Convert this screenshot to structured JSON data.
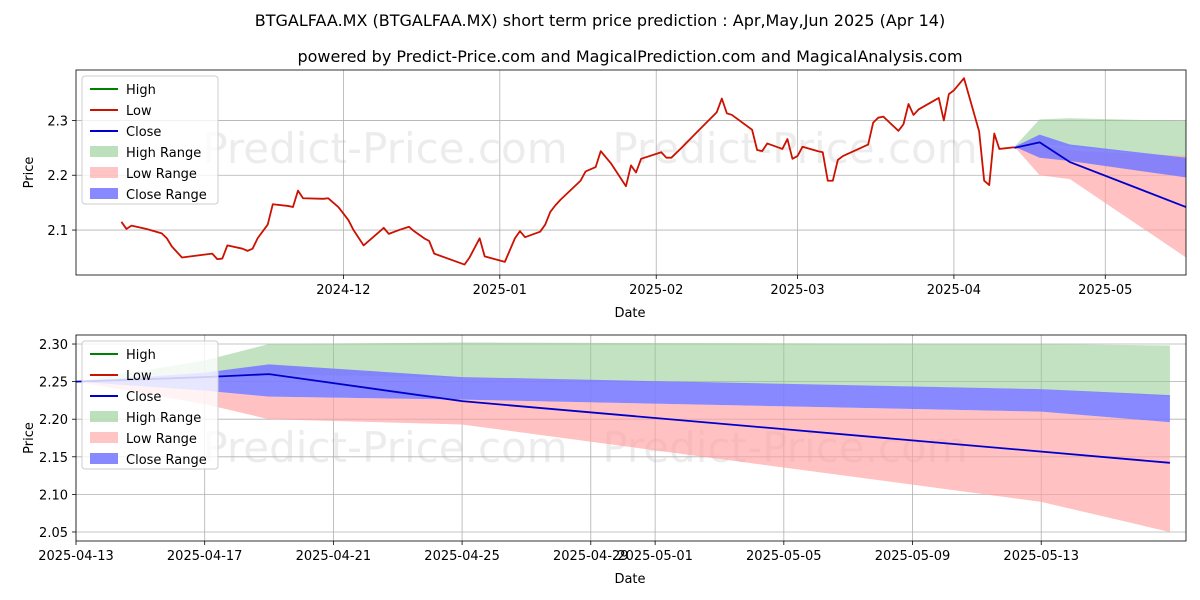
{
  "title": "BTGALFAA.MX (BTGALFAA.MX) short term price prediction : Apr,May,Jun 2025 (Apr 14)",
  "subtitle": "powered by Predict-Price.com and MagicalPrediction.com and MagicalAnalysis.com",
  "watermark": "Predict-Price.com",
  "colors": {
    "high": "#008000",
    "low": "#cc1100",
    "close": "#0000cc",
    "high_range": "#8fca8f",
    "low_range": "#ff9f9f",
    "close_range": "#7b7bff"
  },
  "legend": {
    "high": "High",
    "low": "Low",
    "close": "Close",
    "high_range": "High Range",
    "low_range": "Low Range",
    "close_range": "Close Range"
  },
  "chart_data": [
    {
      "type": "line",
      "xlabel": "Date",
      "ylabel": "Price",
      "xlim_day": [
        -23,
        197
      ],
      "ylim": [
        2.018,
        2.392
      ],
      "yticks": [
        2.1,
        2.2,
        2.3
      ],
      "yticklabels": [
        "2.1",
        "2.2",
        "2.3"
      ],
      "xticks_day": [
        30,
        61,
        92,
        120,
        151,
        181
      ],
      "xticklabels": [
        "2024-12",
        "2025-01",
        "2025-02",
        "2025-03",
        "2025-04",
        "2025-05"
      ],
      "grid": true,
      "legend_position": "upper-left",
      "low_history": [
        [
          -14,
          2.115
        ],
        [
          -13,
          2.102
        ],
        [
          -12,
          2.108
        ],
        [
          -9,
          2.102
        ],
        [
          -6,
          2.094
        ],
        [
          -5,
          2.085
        ],
        [
          -4,
          2.07
        ],
        [
          -2,
          2.05
        ],
        [
          4,
          2.057
        ],
        [
          5,
          2.047
        ],
        [
          6,
          2.048
        ],
        [
          7,
          2.072
        ],
        [
          10,
          2.066
        ],
        [
          11,
          2.062
        ],
        [
          12,
          2.066
        ],
        [
          13,
          2.085
        ],
        [
          15,
          2.11
        ],
        [
          16,
          2.147
        ],
        [
          19,
          2.144
        ],
        [
          20,
          2.142
        ],
        [
          21,
          2.172
        ],
        [
          22,
          2.158
        ],
        [
          26,
          2.157
        ],
        [
          27,
          2.158
        ],
        [
          29,
          2.142
        ],
        [
          30,
          2.13
        ],
        [
          31,
          2.118
        ],
        [
          32,
          2.1
        ],
        [
          34,
          2.072
        ],
        [
          38,
          2.104
        ],
        [
          39,
          2.093
        ],
        [
          41,
          2.1
        ],
        [
          43,
          2.106
        ],
        [
          44,
          2.098
        ],
        [
          46,
          2.085
        ],
        [
          47,
          2.08
        ],
        [
          48,
          2.057
        ],
        [
          54,
          2.037
        ],
        [
          55,
          2.05
        ],
        [
          57,
          2.085
        ],
        [
          58,
          2.052
        ],
        [
          62,
          2.042
        ],
        [
          64,
          2.085
        ],
        [
          65,
          2.098
        ],
        [
          66,
          2.087
        ],
        [
          69,
          2.097
        ],
        [
          70,
          2.11
        ],
        [
          71,
          2.133
        ],
        [
          72,
          2.145
        ],
        [
          73,
          2.155
        ],
        [
          77,
          2.19
        ],
        [
          78,
          2.207
        ],
        [
          80,
          2.215
        ],
        [
          81,
          2.244
        ],
        [
          83,
          2.222
        ],
        [
          86,
          2.18
        ],
        [
          87,
          2.218
        ],
        [
          88,
          2.205
        ],
        [
          89,
          2.23
        ],
        [
          93,
          2.242
        ],
        [
          94,
          2.232
        ],
        [
          95,
          2.232
        ],
        [
          97,
          2.25
        ],
        [
          100,
          2.278
        ],
        [
          104,
          2.315
        ],
        [
          105,
          2.34
        ],
        [
          106,
          2.313
        ],
        [
          107,
          2.31
        ],
        [
          111,
          2.283
        ],
        [
          112,
          2.246
        ],
        [
          113,
          2.244
        ],
        [
          114,
          2.258
        ],
        [
          117,
          2.248
        ],
        [
          118,
          2.266
        ],
        [
          119,
          2.23
        ],
        [
          120,
          2.235
        ],
        [
          121,
          2.252
        ],
        [
          124,
          2.244
        ],
        [
          125,
          2.242
        ],
        [
          126,
          2.19
        ],
        [
          127,
          2.19
        ],
        [
          128,
          2.228
        ],
        [
          129,
          2.235
        ],
        [
          134,
          2.256
        ],
        [
          135,
          2.296
        ],
        [
          136,
          2.305
        ],
        [
          137,
          2.307
        ],
        [
          140,
          2.281
        ],
        [
          141,
          2.293
        ],
        [
          142,
          2.33
        ],
        [
          143,
          2.31
        ],
        [
          144,
          2.32
        ],
        [
          148,
          2.341
        ],
        [
          149,
          2.3
        ],
        [
          150,
          2.348
        ],
        [
          151,
          2.355
        ],
        [
          153,
          2.377
        ],
        [
          156,
          2.28
        ],
        [
          157,
          2.19
        ],
        [
          158,
          2.182
        ],
        [
          159,
          2.276
        ],
        [
          160,
          2.248
        ],
        [
          163,
          2.251
        ]
      ],
      "forecast_day": [
        163,
        168,
        174,
        197
      ],
      "high_range": {
        "upper": [
          2.252,
          2.302,
          2.304,
          2.299
        ],
        "lower": [
          2.252,
          2.257,
          2.253,
          2.23
        ]
      },
      "close_range": {
        "upper": [
          2.252,
          2.274,
          2.256,
          2.232
        ],
        "lower": [
          2.252,
          2.232,
          2.226,
          2.196
        ]
      },
      "low_range": {
        "upper": [
          2.252,
          2.255,
          2.245,
          2.235
        ],
        "lower": [
          2.252,
          2.2,
          2.193,
          2.05
        ]
      },
      "close_line": [
        [
          163,
          2.25
        ],
        [
          168,
          2.26
        ],
        [
          174,
          2.224
        ],
        [
          197,
          2.142
        ]
      ]
    },
    {
      "type": "line",
      "xlabel": "Date",
      "ylabel": "Price",
      "xlim_day": [
        163,
        197.5
      ],
      "ylim": [
        2.038,
        2.312
      ],
      "yticks": [
        2.05,
        2.1,
        2.15,
        2.2,
        2.25,
        2.3
      ],
      "yticklabels": [
        "2.05",
        "2.10",
        "2.15",
        "2.20",
        "2.25",
        "2.30"
      ],
      "xticks_day": [
        163,
        167,
        171,
        175,
        179,
        181,
        185,
        189,
        193
      ],
      "xticklabels": [
        "2025-04-13",
        "2025-04-17",
        "2025-04-21",
        "2025-04-25",
        "2025-04-29",
        "2025-05-01",
        "2025-05-05",
        "2025-05-09",
        "2025-05-13"
      ],
      "grid": true,
      "legend_position": "upper-left",
      "forecast_day": [
        163,
        167,
        169,
        175,
        193,
        197
      ],
      "high_range": {
        "upper": [
          2.25,
          2.278,
          2.3,
          2.302,
          2.3,
          2.298
        ],
        "lower": [
          2.25,
          2.262,
          2.26,
          2.255,
          2.24,
          2.23
        ]
      },
      "close_range": {
        "upper": [
          2.25,
          2.262,
          2.273,
          2.256,
          2.24,
          2.232
        ],
        "lower": [
          2.25,
          2.238,
          2.23,
          2.226,
          2.21,
          2.196
        ]
      },
      "low_range": {
        "upper": [
          2.25,
          2.238,
          2.23,
          2.226,
          2.21,
          2.196
        ],
        "lower": [
          2.25,
          2.22,
          2.2,
          2.193,
          2.09,
          2.05
        ]
      },
      "close_line": [
        [
          163,
          2.25
        ],
        [
          167,
          2.256
        ],
        [
          169,
          2.26
        ],
        [
          175,
          2.224
        ],
        [
          197,
          2.142
        ]
      ]
    }
  ]
}
